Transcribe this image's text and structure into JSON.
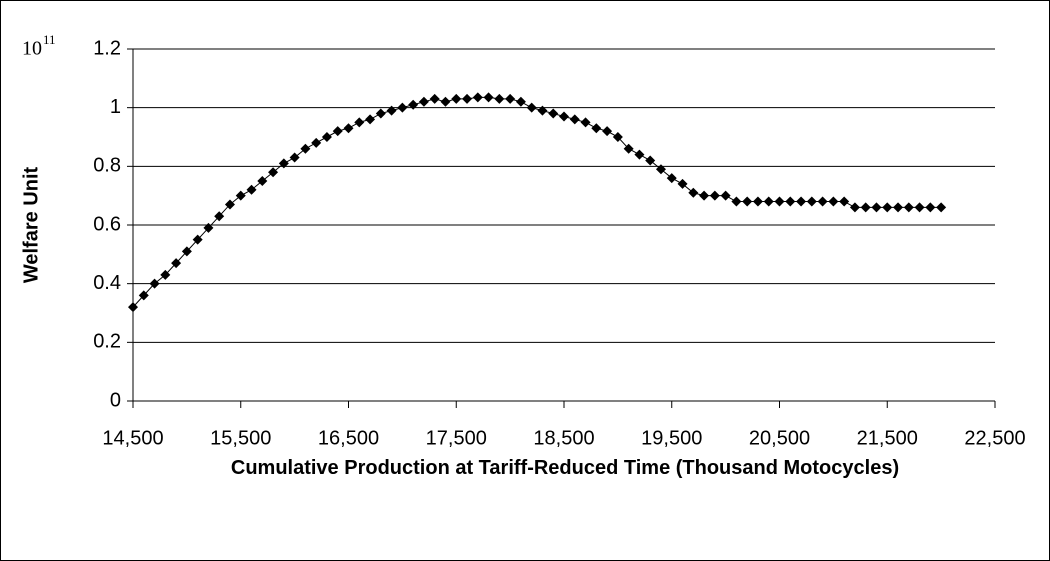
{
  "chart_data": {
    "type": "line",
    "x_label": "Cumulative Production at Tariff-Reduced Time (Thousand Motocycles)",
    "y_label": "Welfare Unit",
    "y_multiplier_base": "10",
    "y_multiplier_exponent": "11",
    "x": [
      14500,
      14600,
      14700,
      14800,
      14900,
      15000,
      15100,
      15200,
      15300,
      15400,
      15500,
      15600,
      15700,
      15800,
      15900,
      16000,
      16100,
      16200,
      16300,
      16400,
      16500,
      16600,
      16700,
      16800,
      16900,
      17000,
      17100,
      17200,
      17300,
      17400,
      17500,
      17600,
      17700,
      17800,
      17900,
      18000,
      18100,
      18200,
      18300,
      18400,
      18500,
      18600,
      18700,
      18800,
      18900,
      19000,
      19100,
      19200,
      19300,
      19400,
      19500,
      19600,
      19700,
      19800,
      19900,
      20000,
      20100,
      20200,
      20300,
      20400,
      20500,
      20600,
      20700,
      20800,
      20900,
      21000,
      21100,
      21200,
      21300,
      21400,
      21500,
      21600,
      21700,
      21800,
      21900,
      22000
    ],
    "series": [
      {
        "name": "Welfare",
        "color": "#000000",
        "values": [
          0.32,
          0.36,
          0.4,
          0.43,
          0.47,
          0.51,
          0.55,
          0.59,
          0.63,
          0.67,
          0.7,
          0.72,
          0.75,
          0.78,
          0.81,
          0.83,
          0.86,
          0.88,
          0.9,
          0.92,
          0.93,
          0.95,
          0.96,
          0.98,
          0.99,
          1.0,
          1.01,
          1.02,
          1.03,
          1.02,
          1.03,
          1.03,
          1.035,
          1.035,
          1.03,
          1.03,
          1.02,
          1.0,
          0.99,
          0.98,
          0.97,
          0.96,
          0.95,
          0.93,
          0.92,
          0.9,
          0.86,
          0.84,
          0.82,
          0.79,
          0.76,
          0.74,
          0.71,
          0.7,
          0.7,
          0.7,
          0.68,
          0.68,
          0.68,
          0.68,
          0.68,
          0.68,
          0.68,
          0.68,
          0.68,
          0.68,
          0.68,
          0.66,
          0.66,
          0.66,
          0.66,
          0.66,
          0.66,
          0.66,
          0.66,
          0.66
        ]
      }
    ],
    "xlim": [
      14500,
      22500
    ],
    "xticks": [
      {
        "value": 14500,
        "label": "14,500"
      },
      {
        "value": 15500,
        "label": "15,500"
      },
      {
        "value": 16500,
        "label": "16,500"
      },
      {
        "value": 17500,
        "label": "17,500"
      },
      {
        "value": 18500,
        "label": "18,500"
      },
      {
        "value": 19500,
        "label": "19,500"
      },
      {
        "value": 20500,
        "label": "20,500"
      },
      {
        "value": 21500,
        "label": "21,500"
      },
      {
        "value": 22500,
        "label": "22,500"
      }
    ],
    "ylim": [
      0,
      1.2
    ],
    "yticks": [
      0,
      0.2,
      0.4,
      0.6,
      0.8,
      1,
      1.2
    ],
    "grid": true,
    "marker": "diamond"
  }
}
